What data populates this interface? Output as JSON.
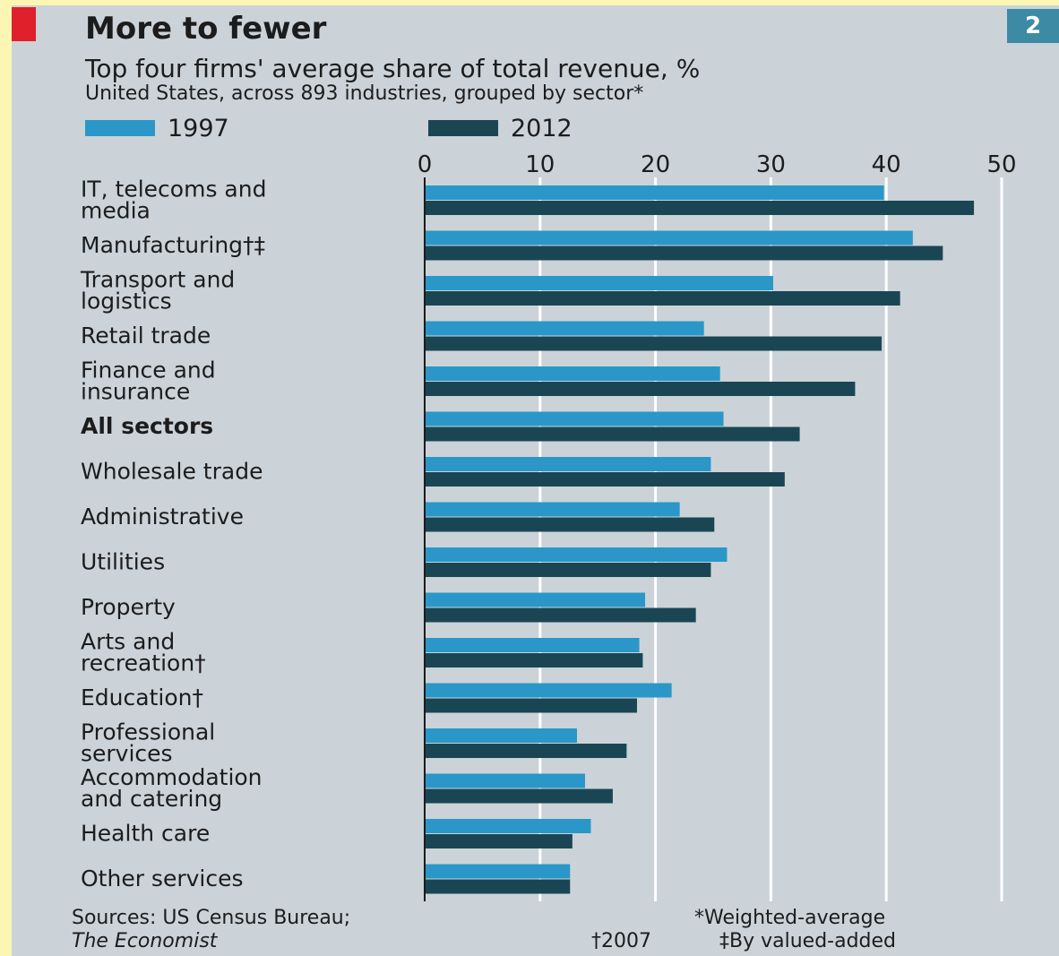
{
  "header": {
    "title": "More to fewer",
    "subtitle": "Top four firms' average share of total revenue, %",
    "subsubtitle": "United States, across 893 industries, grouped by sector*",
    "chart_number": "2"
  },
  "colors": {
    "series_1997": "#2a97c8",
    "series_2012": "#1a4654",
    "background": "#fbf7b3",
    "panel": "#cbd3d8",
    "accent_red": "#e0202a"
  },
  "chart_data": {
    "type": "bar",
    "orientation": "horizontal",
    "title": "More to fewer",
    "subtitle": "Top four firms' average share of total revenue, %",
    "xlim": [
      0,
      50
    ],
    "xticks": [
      "0",
      "10",
      "20",
      "30",
      "40",
      "50"
    ],
    "grid": true,
    "legend_placement": "top-left",
    "categories": [
      [
        "IT, telecoms and",
        "media"
      ],
      [
        "Manufacturing†‡"
      ],
      [
        "Transport and",
        "logistics"
      ],
      [
        "Retail trade"
      ],
      [
        "Finance and",
        "insurance"
      ],
      [
        "All sectors"
      ],
      [
        "Wholesale trade"
      ],
      [
        "Administrative"
      ],
      [
        "Utilities"
      ],
      [
        "Property"
      ],
      [
        "Arts and",
        "recreation†"
      ],
      [
        "Education†"
      ],
      [
        "Professional",
        "services"
      ],
      [
        "Accommodation",
        "and catering"
      ],
      [
        "Health care"
      ],
      [
        "Other services"
      ]
    ],
    "bold_categories": [
      "All sectors"
    ],
    "series": [
      {
        "name": "1997",
        "values": [
          39.8,
          42.3,
          30.2,
          24.2,
          25.6,
          25.9,
          24.8,
          22.1,
          26.2,
          19.1,
          18.6,
          21.4,
          13.2,
          13.9,
          14.4,
          12.6
        ]
      },
      {
        "name": "2012",
        "values": [
          47.6,
          44.9,
          41.2,
          39.6,
          37.3,
          32.5,
          31.2,
          25.1,
          24.8,
          23.5,
          18.9,
          18.4,
          17.5,
          16.3,
          12.8,
          12.6
        ]
      }
    ]
  },
  "footer": {
    "sources_line1": "Sources: US Census Bureau;",
    "sources_line2": "The Economist",
    "note_weighted": "*Weighted-average",
    "note_2007": "†2007",
    "note_valued": "‡By valued-added"
  }
}
